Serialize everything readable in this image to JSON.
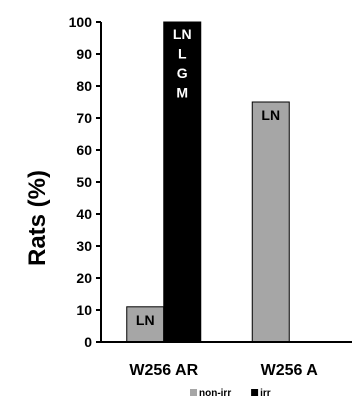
{
  "chart_data": {
    "type": "bar",
    "title": "",
    "xlabel": "",
    "ylabel": "Rats (%)",
    "ylim": [
      0,
      100
    ],
    "yticks": [
      0,
      10,
      20,
      30,
      40,
      50,
      60,
      70,
      80,
      90,
      100
    ],
    "categories": [
      "W256 AR",
      "W256 A"
    ],
    "series": [
      {
        "name": "non-irr",
        "color": "#a6a6a6",
        "values": [
          11,
          75
        ]
      },
      {
        "name": "irr",
        "color": "#000000",
        "values": [
          100,
          null
        ]
      }
    ],
    "bar_labels": [
      {
        "category": "W256 AR",
        "series": "non-irr",
        "lines": [
          "LN"
        ]
      },
      {
        "category": "W256 AR",
        "series": "irr",
        "lines": [
          "LN",
          "L",
          "G",
          "M"
        ]
      },
      {
        "category": "W256 A",
        "series": "non-irr",
        "lines": [
          "LN"
        ]
      }
    ],
    "legend": {
      "position": "bottom"
    },
    "grid": false
  }
}
